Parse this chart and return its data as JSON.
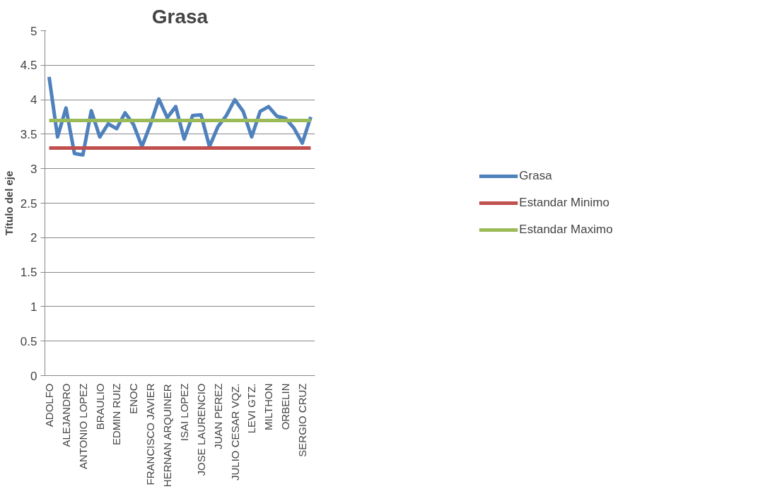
{
  "chart_data": {
    "type": "line",
    "title": "Grasa",
    "ylabel": "Título del eje",
    "categories": [
      "ADOLFO",
      null,
      "ALEJANDRO",
      null,
      "ANTONIO LOPEZ",
      null,
      "BRAULIO",
      null,
      "EDMIN RUIZ",
      null,
      "ENOC",
      null,
      "FRANCISCO JAVIER",
      null,
      "HERNAN ARQUINER",
      null,
      "ISAI LOPEZ",
      null,
      "JOSE LAURENCIO",
      null,
      "JUAN PEREZ",
      null,
      "JULIO CESAR VQZ.",
      null,
      "LEVI GTZ.",
      null,
      "MILTHON",
      null,
      "ORBELIN",
      null,
      "SERGIO CRUZ",
      null
    ],
    "series": [
      {
        "name": "Grasa",
        "color": "#4f81bd",
        "values": [
          4.33,
          3.46,
          3.88,
          3.22,
          3.2,
          3.84,
          3.46,
          3.65,
          3.58,
          3.81,
          3.64,
          3.32,
          3.64,
          4.01,
          3.74,
          3.9,
          3.43,
          3.77,
          3.78,
          3.32,
          3.61,
          3.77,
          4.0,
          3.83,
          3.46,
          3.83,
          3.9,
          3.76,
          3.73,
          3.59,
          3.37,
          3.75
        ]
      },
      {
        "name": "Estandar Minimo",
        "color": "#c0504d",
        "values": [
          3.3,
          3.3,
          3.3,
          3.3,
          3.3,
          3.3,
          3.3,
          3.3,
          3.3,
          3.3,
          3.3,
          3.3,
          3.3,
          3.3,
          3.3,
          3.3,
          3.3,
          3.3,
          3.3,
          3.3,
          3.3,
          3.3,
          3.3,
          3.3,
          3.3,
          3.3,
          3.3,
          3.3,
          3.3,
          3.3,
          3.3,
          3.3
        ]
      },
      {
        "name": "Estandar Maximo",
        "color": "#9bbb59",
        "values": [
          3.7,
          3.7,
          3.7,
          3.7,
          3.7,
          3.7,
          3.7,
          3.7,
          3.7,
          3.7,
          3.7,
          3.7,
          3.7,
          3.7,
          3.7,
          3.7,
          3.7,
          3.7,
          3.7,
          3.7,
          3.7,
          3.7,
          3.7,
          3.7,
          3.7,
          3.7,
          3.7,
          3.7,
          3.7,
          3.7,
          3.7,
          3.7
        ]
      }
    ],
    "ylim": [
      0,
      5
    ],
    "yticks": [
      0,
      0.5,
      1,
      1.5,
      2,
      2.5,
      3,
      3.5,
      4,
      4.5,
      5
    ],
    "grid": "y",
    "legend": "right",
    "marker": "none",
    "line_style": "solid"
  }
}
